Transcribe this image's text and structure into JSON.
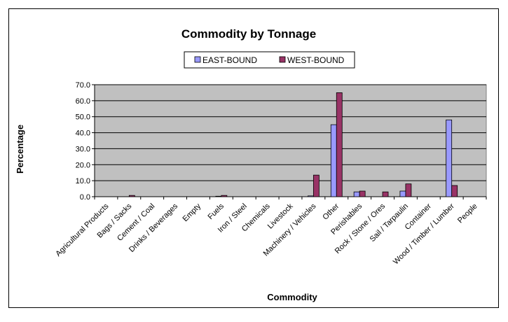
{
  "chart_data": {
    "type": "bar",
    "title": "Commodity by Tonnage",
    "xlabel": "Commodity",
    "ylabel": "Percentage",
    "ylim": [
      0,
      70
    ],
    "yticks": [
      "0.0",
      "10.0",
      "20.0",
      "30.0",
      "40.0",
      "50.0",
      "60.0",
      "70.0"
    ],
    "grid": true,
    "legend": "top-center",
    "categories": [
      "Agricultural Products",
      "Bags / Sacks",
      "Cement / Coal",
      "Drinks / Beverages",
      "Empty",
      "Fuels",
      "Iron / Steel",
      "Chemicals",
      "Livestock",
      "Machinery / Vehicles",
      "Other",
      "Perishables",
      "Rock / Stone / Ores",
      "Sail / Tarpaulin",
      "Container",
      "Wood / Timber / Lumber",
      "People"
    ],
    "series": [
      {
        "name": "EAST-BOUND",
        "color": "#9999ff",
        "values": [
          0,
          0,
          0,
          0,
          0,
          0.3,
          0,
          0,
          0,
          0.5,
          45,
          3,
          0,
          3.5,
          0,
          48,
          0
        ]
      },
      {
        "name": "WEST-BOUND",
        "color": "#993366",
        "values": [
          0,
          0.8,
          0,
          0,
          0,
          0.8,
          0,
          0,
          0,
          13.5,
          65,
          3.5,
          3,
          8,
          0,
          7,
          0
        ]
      }
    ],
    "plot_bg": "#c0c0c0"
  }
}
